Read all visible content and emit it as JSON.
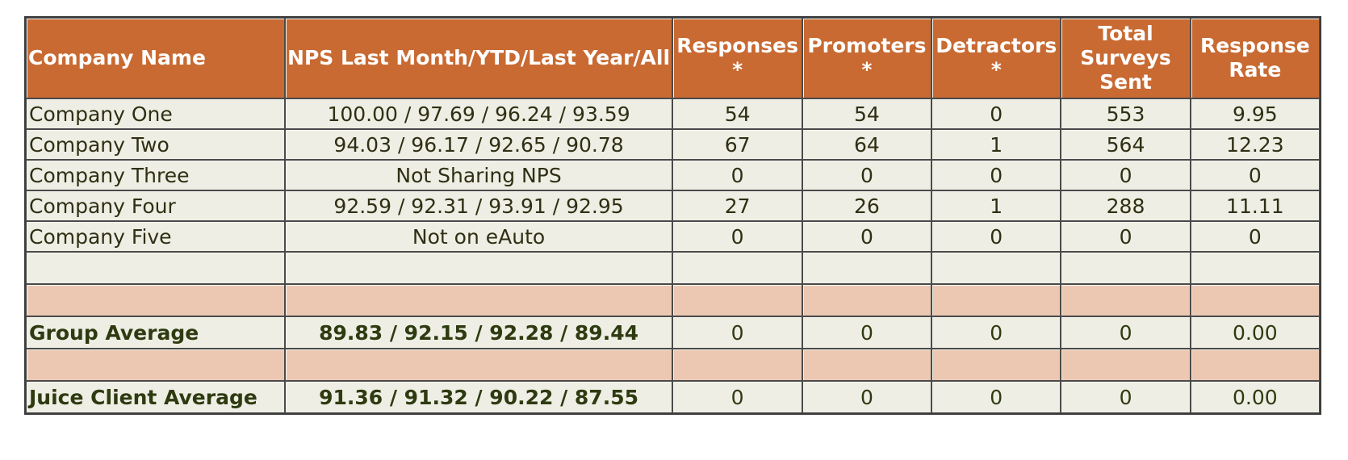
{
  "headers": {
    "company": "Company Name",
    "nps": "NPS Last Month/YTD/Last Year/All",
    "responses": "Responses *",
    "promoters": "Promoters *",
    "detractors": "Detractors *",
    "surveys": "Total Surveys Sent",
    "rate": "Response Rate"
  },
  "rows": [
    {
      "company": "Company One",
      "nps": "100.00 / 97.69 / 96.24 / 93.59",
      "responses": "54",
      "promoters": "54",
      "detractors": "0",
      "surveys": "553",
      "rate": "9.95"
    },
    {
      "company": "Company Two",
      "nps": "94.03 / 96.17 / 92.65 / 90.78",
      "responses": "67",
      "promoters": "64",
      "detractors": "1",
      "surveys": "564",
      "rate": "12.23"
    },
    {
      "company": "Company Three",
      "nps": "Not Sharing NPS",
      "responses": "0",
      "promoters": "0",
      "detractors": "0",
      "surveys": "0",
      "rate": "0"
    },
    {
      "company": "Company Four",
      "nps": "92.59 / 92.31 / 93.91 / 92.95",
      "responses": "27",
      "promoters": "26",
      "detractors": "1",
      "surveys": "288",
      "rate": "11.11"
    },
    {
      "company": "Company Five",
      "nps": "Not on eAuto",
      "responses": "0",
      "promoters": "0",
      "detractors": "0",
      "surveys": "0",
      "rate": "0"
    }
  ],
  "group_average": {
    "company": "Group Average",
    "nps": "89.83 / 92.15 / 92.28 / 89.44",
    "responses": "0",
    "promoters": "0",
    "detractors": "0",
    "surveys": "0",
    "rate": "0.00"
  },
  "client_average": {
    "company": "Juice Client Average",
    "nps": "91.36 / 91.32 / 90.22 / 87.55",
    "responses": "0",
    "promoters": "0",
    "detractors": "0",
    "surveys": "0",
    "rate": "0.00"
  },
  "colors": {
    "header_bg": "#c86a32",
    "row_bg": "#eeeee4",
    "separator_bg": "#ecc8b2",
    "text": "#2f2f14"
  }
}
